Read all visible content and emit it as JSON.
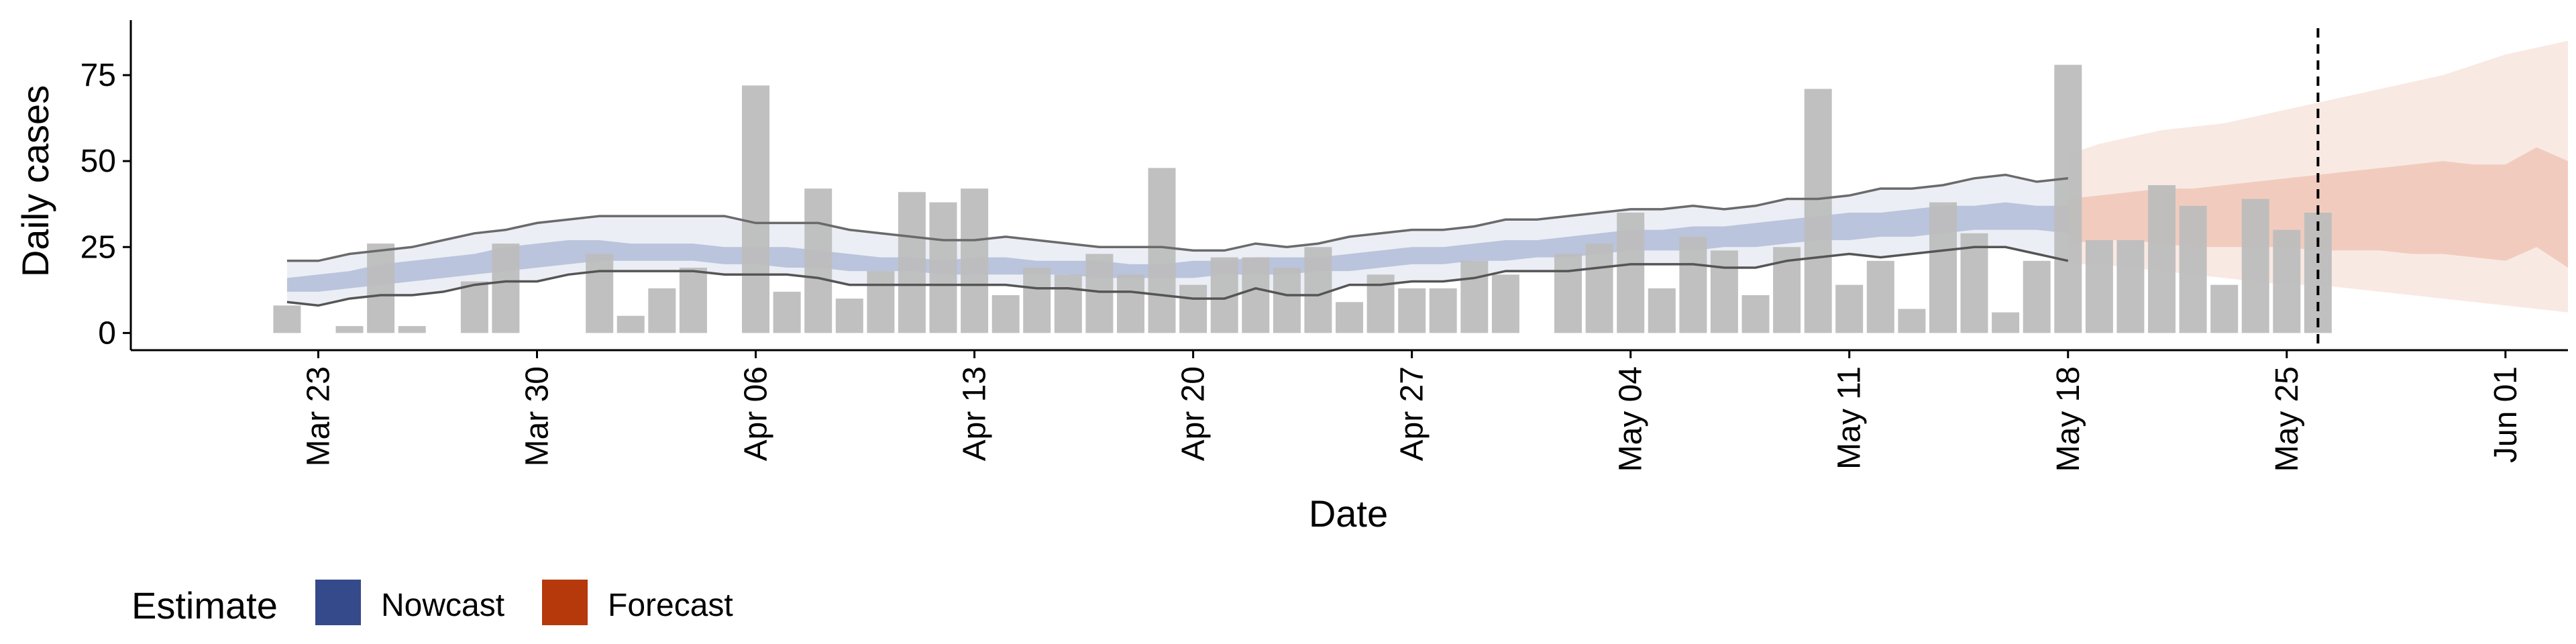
{
  "chart_data": {
    "type": "bar",
    "xlabel": "Date",
    "ylabel": "Daily cases",
    "xlim": [
      "2020-03-17",
      "2020-06-03"
    ],
    "ylim": [
      -5,
      91
    ],
    "x_ticks": [
      {
        "date": "2020-03-23",
        "label": "Mar 23"
      },
      {
        "date": "2020-03-30",
        "label": "Mar 30"
      },
      {
        "date": "2020-04-06",
        "label": "Apr 06"
      },
      {
        "date": "2020-04-13",
        "label": "Apr 13"
      },
      {
        "date": "2020-04-20",
        "label": "Apr 20"
      },
      {
        "date": "2020-04-27",
        "label": "Apr 27"
      },
      {
        "date": "2020-05-04",
        "label": "May 04"
      },
      {
        "date": "2020-05-11",
        "label": "May 11"
      },
      {
        "date": "2020-05-18",
        "label": "May 18"
      },
      {
        "date": "2020-05-25",
        "label": "May 25"
      },
      {
        "date": "2020-06-01",
        "label": "Jun 01"
      }
    ],
    "y_ticks": [
      0,
      25,
      50,
      75
    ],
    "grid": false,
    "legend": {
      "title": "Estimate",
      "position": "bottom-left",
      "items": [
        {
          "label": "Nowcast",
          "color": "#354a8a"
        },
        {
          "label": "Forecast",
          "color": "#b5390a"
        }
      ]
    },
    "colors": {
      "bars": "#bdbdbd",
      "nowcast_band": "#3c5a9a",
      "forecast_band": "#d6643a",
      "outer_lines": "#6a6a6a",
      "reference_line": "#000000"
    },
    "reference_line_date": "2020-05-26",
    "observed_cases": {
      "start_date": "2020-03-22",
      "values": [
        8,
        0,
        2,
        26,
        2,
        0,
        15,
        26,
        0,
        0,
        23,
        5,
        13,
        19,
        0,
        72,
        12,
        42,
        10,
        18,
        41,
        38,
        42,
        11,
        19,
        17,
        23,
        17,
        48,
        14,
        22,
        22,
        19,
        25,
        9,
        17,
        13,
        13,
        21,
        17,
        0,
        23,
        26,
        35,
        13,
        28,
        24,
        11,
        25,
        71,
        14,
        21,
        7,
        38,
        29,
        6,
        21,
        78,
        27,
        27,
        43,
        37,
        14,
        39,
        30,
        35
      ]
    },
    "nowcast": {
      "start_date": "2020-03-22",
      "outer_upper": [
        21,
        21,
        23,
        24,
        25,
        27,
        29,
        30,
        32,
        33,
        34,
        34,
        34,
        34,
        34,
        32,
        32,
        32,
        30,
        29,
        28,
        27,
        27,
        28,
        27,
        26,
        25,
        25,
        25,
        24,
        24,
        26,
        25,
        26,
        28,
        29,
        30,
        30,
        31,
        33,
        33,
        34,
        35,
        36,
        36,
        37,
        36,
        37,
        39,
        39,
        40,
        42,
        42,
        43,
        45,
        46,
        44,
        45
      ],
      "outer_lower": [
        9,
        8,
        10,
        11,
        11,
        12,
        14,
        15,
        15,
        17,
        18,
        18,
        18,
        18,
        17,
        17,
        17,
        16,
        14,
        14,
        14,
        14,
        14,
        14,
        13,
        13,
        12,
        12,
        11,
        10,
        10,
        13,
        11,
        11,
        14,
        14,
        15,
        15,
        16,
        18,
        18,
        18,
        19,
        20,
        20,
        20,
        19,
        19,
        21,
        22,
        23,
        22,
        23,
        24,
        25,
        25,
        23,
        21
      ],
      "band_upper": [
        16,
        17,
        18,
        20,
        21,
        22,
        23,
        25,
        26,
        27,
        27,
        26,
        26,
        26,
        25,
        25,
        25,
        24,
        23,
        22,
        22,
        21,
        22,
        22,
        21,
        21,
        21,
        20,
        20,
        21,
        21,
        22,
        22,
        22,
        23,
        24,
        25,
        25,
        26,
        27,
        27,
        28,
        29,
        30,
        30,
        31,
        31,
        32,
        33,
        34,
        35,
        35,
        36,
        37,
        37,
        38,
        37,
        37
      ],
      "band_lower": [
        12,
        12,
        13,
        14,
        15,
        16,
        17,
        18,
        19,
        20,
        21,
        21,
        21,
        21,
        20,
        20,
        19,
        19,
        18,
        18,
        18,
        17,
        17,
        17,
        17,
        17,
        16,
        16,
        16,
        16,
        17,
        17,
        17,
        18,
        18,
        19,
        20,
        20,
        21,
        21,
        22,
        22,
        23,
        24,
        24,
        24,
        25,
        25,
        26,
        27,
        27,
        28,
        28,
        29,
        30,
        30,
        30,
        29
      ]
    },
    "forecast": {
      "start_date": "2020-05-18",
      "outer_upper": [
        52,
        55,
        57,
        59,
        60,
        61,
        63,
        65,
        67,
        69,
        71,
        73,
        75,
        78,
        81,
        83,
        85
      ],
      "inner_upper": [
        39,
        40,
        41,
        42,
        42,
        43,
        44,
        45,
        46,
        47,
        48,
        49,
        50,
        49,
        49,
        54,
        50
      ],
      "inner_lower": [
        26,
        27,
        27,
        26,
        25,
        25,
        25,
        25,
        24,
        24,
        24,
        23,
        23,
        22,
        21,
        25,
        19
      ],
      "outer_lower": [
        20,
        20,
        19,
        18,
        17,
        16,
        15,
        14,
        14,
        13,
        12,
        11,
        10,
        9,
        8,
        7,
        6
      ]
    }
  }
}
